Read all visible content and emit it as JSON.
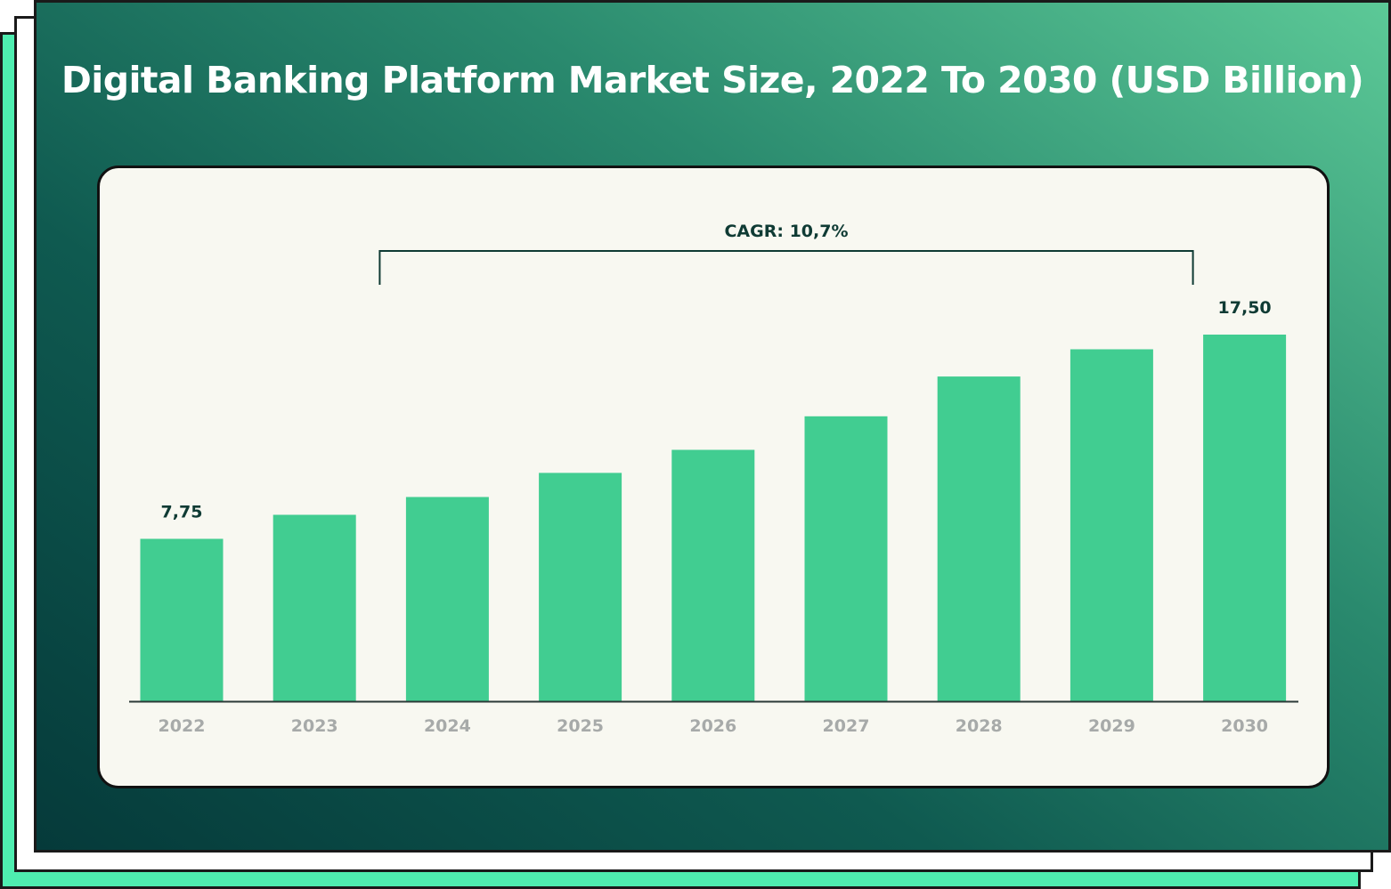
{
  "chart_data": {
    "type": "bar",
    "title": "Digital Banking Platform Market Size, 2022 To 2030 (USD Billion)",
    "categories": [
      "2022",
      "2023",
      "2024",
      "2025",
      "2026",
      "2027",
      "2028",
      "2029",
      "2030"
    ],
    "values": [
      7.75,
      8.9,
      9.75,
      10.9,
      12.0,
      13.6,
      15.5,
      16.8,
      17.5
    ],
    "data_labels": {
      "0": "7,75",
      "8": "17,50"
    },
    "annotation": {
      "text": "CAGR: 10,7%",
      "from_category": "2024",
      "to_category": "2030"
    },
    "xlabel": "",
    "ylabel": "",
    "ylim": [
      0,
      19.5
    ],
    "grid": false,
    "legend": "none"
  },
  "colors": {
    "bar": "#41cd91",
    "axis": "#2b3a38",
    "label_dark": "#0f3b34",
    "category_text": "#a7aaa9",
    "card_bg": "#f8f8f1",
    "accent": "#4eeeb0"
  }
}
